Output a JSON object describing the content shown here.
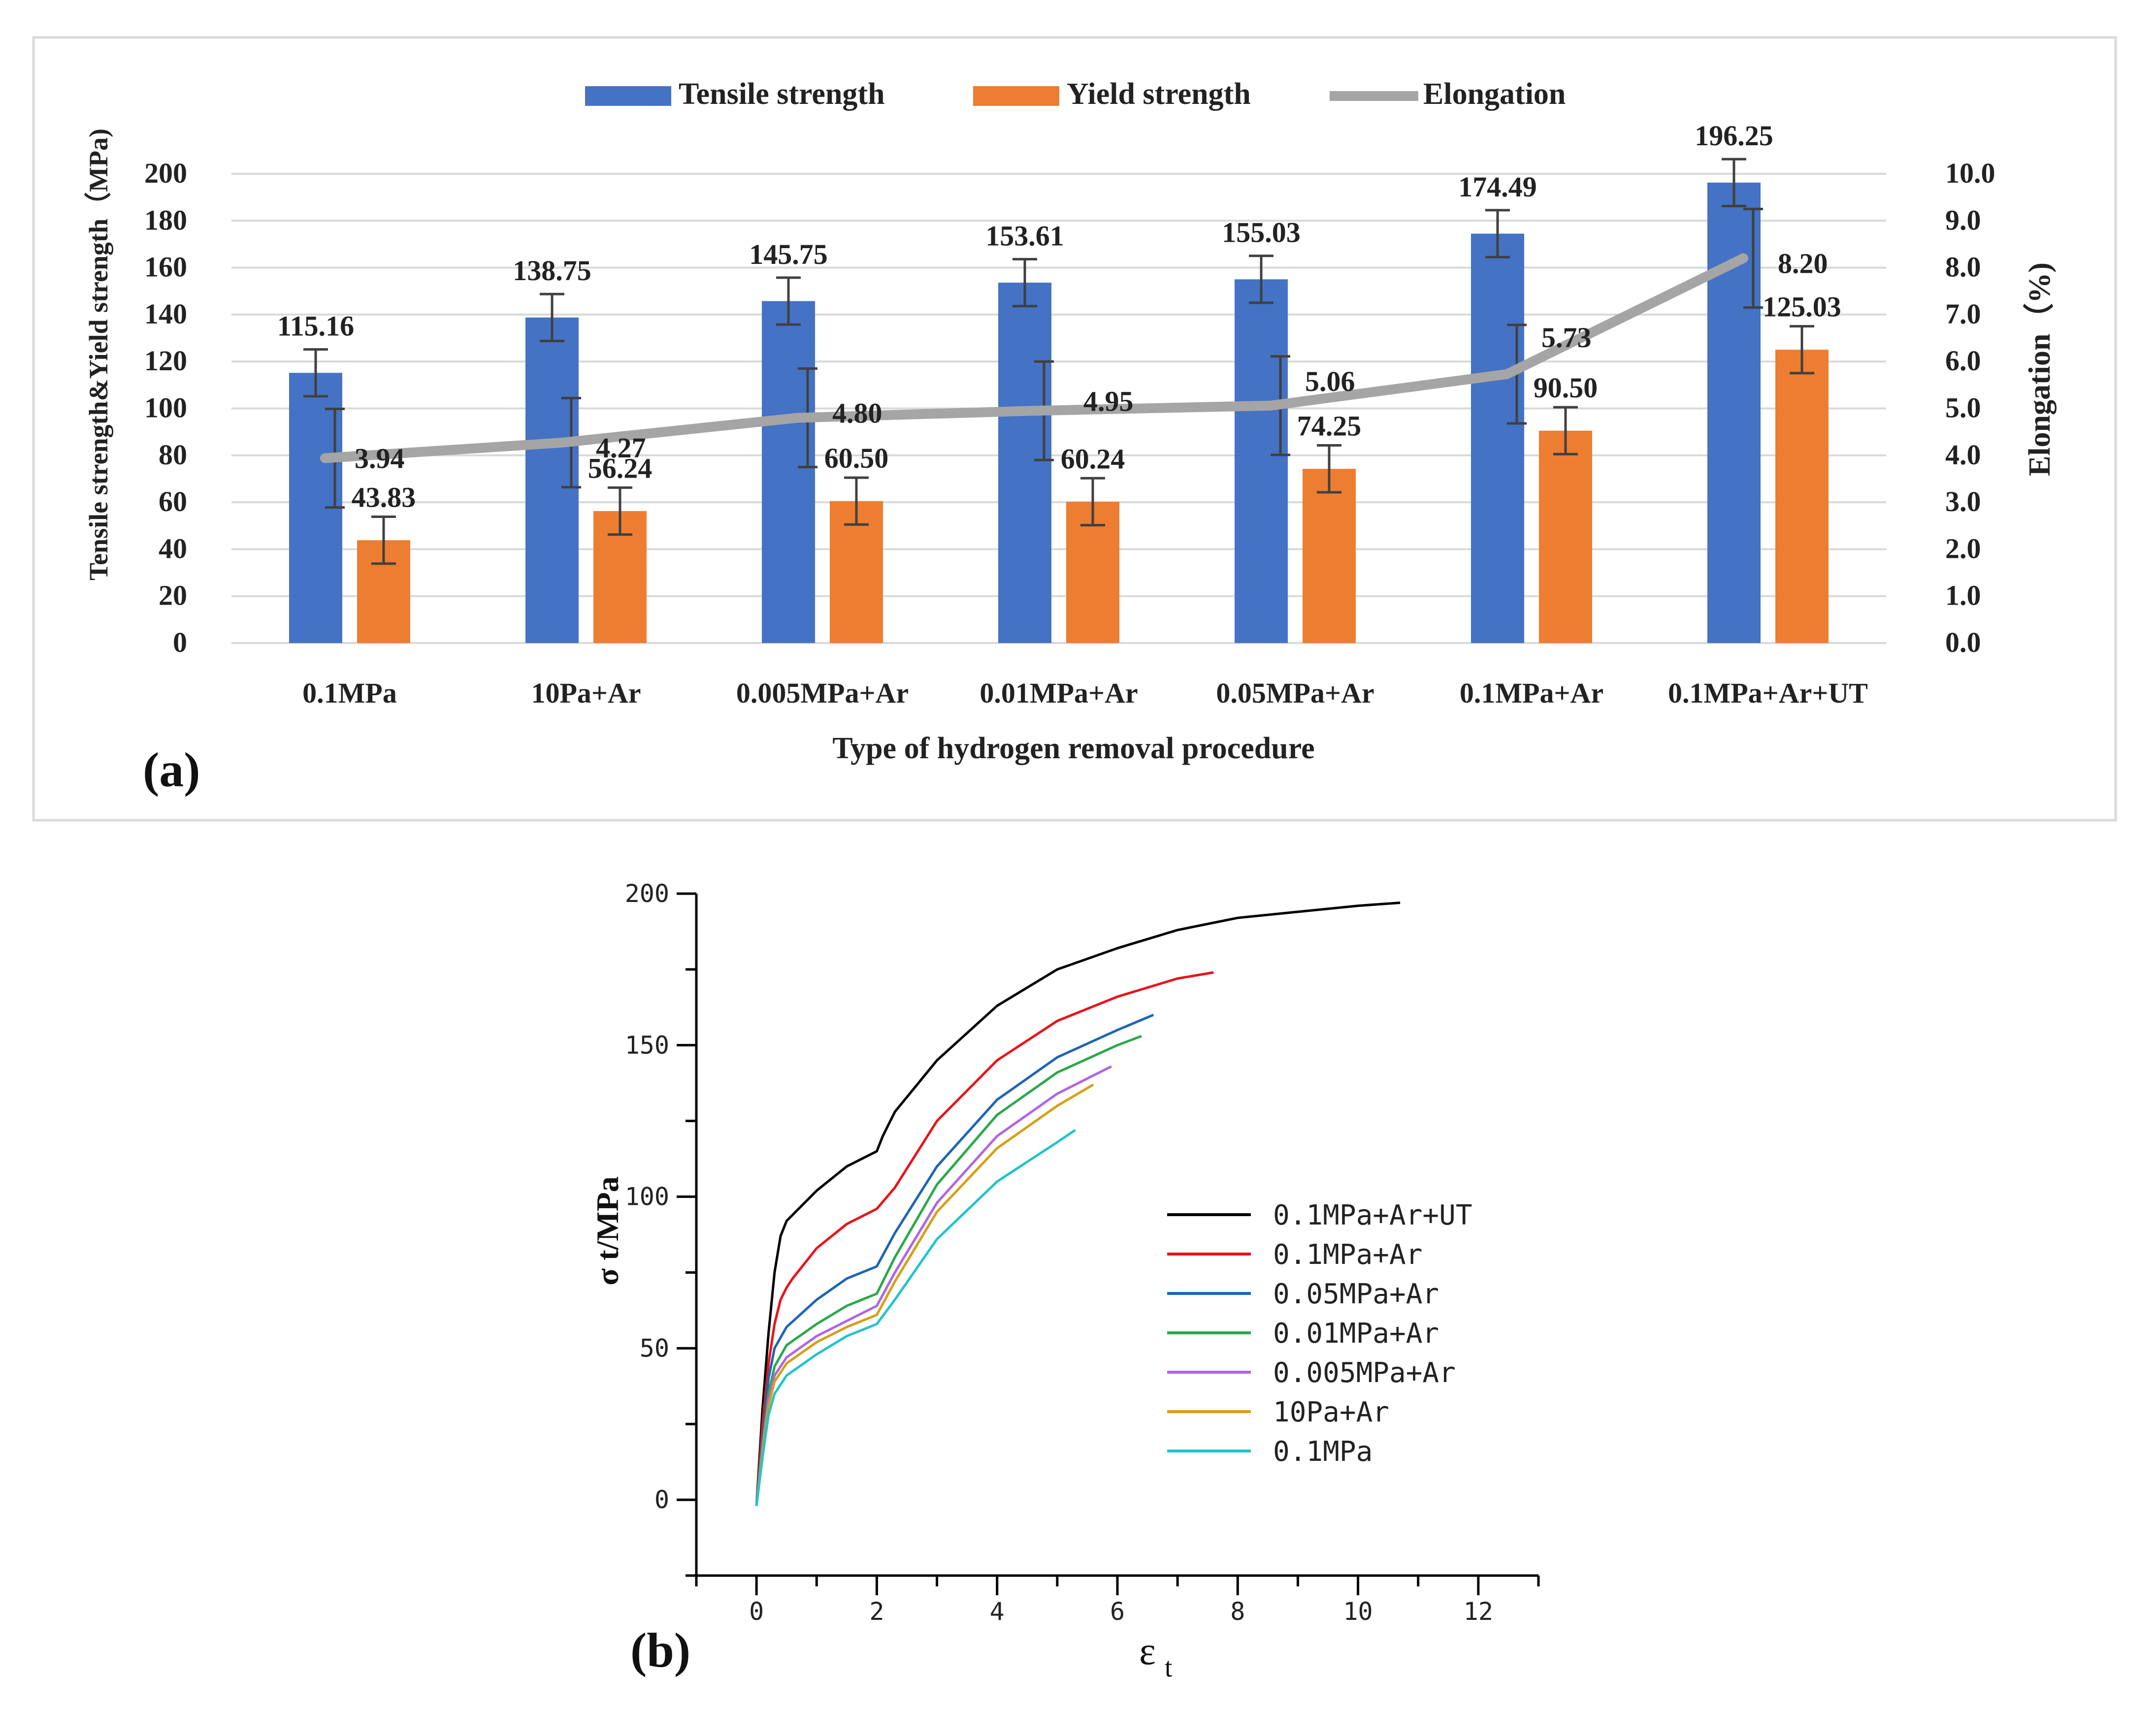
{
  "chart_data": [
    {
      "panel_label": "(a)",
      "type": "bar",
      "title": "",
      "xlabel": "Type of  hydrogen removal procedure",
      "ylabel": "Tensile strength&Yield strength（MPa)",
      "y2label": "Elongation（%)",
      "categories": [
        "0.1MPa",
        "10Pa+Ar",
        "0.005MPa+Ar",
        "0.01MPa+Ar",
        "0.05MPa+Ar",
        "0.1MPa+Ar",
        "0.1MPa+Ar+UT"
      ],
      "ylim": [
        0,
        200
      ],
      "yticks": [
        "0",
        "20",
        "40",
        "60",
        "80",
        "100",
        "120",
        "140",
        "160",
        "180",
        "200"
      ],
      "y2lim": [
        0,
        10
      ],
      "y2ticks": [
        "0.0",
        "1.0",
        "2.0",
        "3.0",
        "4.0",
        "5.0",
        "6.0",
        "7.0",
        "8.0",
        "9.0",
        "10.0"
      ],
      "legend_position": "top",
      "series": [
        {
          "name": "Tensile strength",
          "kind": "bar",
          "color": "#4472C4",
          "values": [
            115.16,
            138.75,
            145.75,
            153.61,
            155.03,
            174.49,
            196.25
          ],
          "labels": [
            "115.16",
            "138.75",
            "145.75",
            "153.61",
            "155.03",
            "174.49",
            "196.25"
          ],
          "error": [
            10,
            10,
            10,
            10,
            10,
            10,
            10
          ]
        },
        {
          "name": "Yield strength",
          "kind": "bar",
          "color": "#ED7D31",
          "values": [
            43.83,
            56.24,
            60.5,
            60.24,
            74.25,
            90.5,
            125.03
          ],
          "labels": [
            "43.83",
            "56.24",
            "60.50",
            "60.24",
            "74.25",
            "90.50",
            "125.03"
          ],
          "error": [
            10,
            10,
            10,
            10,
            10,
            10,
            10
          ]
        },
        {
          "name": "Elongation",
          "kind": "line",
          "axis": "right",
          "color": "#A5A5A5",
          "values": [
            3.94,
            4.27,
            4.8,
            4.95,
            5.06,
            5.73,
            8.2
          ],
          "labels": [
            "3.94",
            "4.27",
            "4.80",
            "4.95",
            "5.06",
            "5.73",
            "8.20"
          ],
          "error": [
            1.05,
            0.95,
            1.05,
            1.05,
            1.05,
            1.05,
            1.05
          ]
        }
      ]
    },
    {
      "panel_label": "(b)",
      "type": "line",
      "title": "",
      "xlabel": "ε",
      "xlabel_sub": "t",
      "ylabel": "σ t/MPa",
      "xlim": [
        -1,
        13
      ],
      "ylim": [
        -25,
        200
      ],
      "xticks": [
        "0",
        "2",
        "4",
        "6",
        "8",
        "10",
        "12"
      ],
      "yticks": [
        "0",
        "50",
        "100",
        "150",
        "200"
      ],
      "legend_position": "right-center",
      "series": [
        {
          "name": "0.1MPa+Ar+UT",
          "color": "#000000",
          "x": [
            0,
            0.1,
            0.2,
            0.3,
            0.4,
            0.5,
            0.6,
            1.0,
            1.5,
            2.0,
            2.1,
            2.3,
            3.0,
            4.0,
            5.0,
            6.0,
            7.0,
            8.0,
            9.0,
            10.0,
            10.7
          ],
          "y": [
            -2,
            30,
            55,
            75,
            87,
            92,
            94,
            102,
            110,
            115,
            120,
            128,
            145,
            163,
            175,
            182,
            188,
            192,
            194,
            196,
            197
          ]
        },
        {
          "name": "0.1MPa+Ar",
          "color": "#E8141B",
          "x": [
            0,
            0.1,
            0.2,
            0.3,
            0.4,
            0.5,
            0.6,
            1.0,
            1.5,
            2.0,
            2.3,
            3.0,
            4.0,
            5.0,
            6.0,
            7.0,
            7.6
          ],
          "y": [
            -2,
            25,
            45,
            58,
            66,
            70,
            73,
            83,
            91,
            96,
            103,
            125,
            145,
            158,
            166,
            172,
            174
          ]
        },
        {
          "name": "0.05MPa+Ar",
          "color": "#1F64B4",
          "x": [
            0,
            0.1,
            0.2,
            0.3,
            0.5,
            1.0,
            1.5,
            2.0,
            2.3,
            3.0,
            4.0,
            5.0,
            6.0,
            6.6
          ],
          "y": [
            -2,
            20,
            40,
            50,
            57,
            66,
            73,
            77,
            88,
            110,
            132,
            146,
            155,
            160
          ]
        },
        {
          "name": "0.01MPa+Ar",
          "color": "#2BA84A",
          "x": [
            0,
            0.1,
            0.2,
            0.3,
            0.5,
            1.0,
            1.5,
            2.0,
            2.3,
            3.0,
            4.0,
            5.0,
            6.0,
            6.4
          ],
          "y": [
            -2,
            18,
            35,
            44,
            51,
            58,
            64,
            68,
            80,
            104,
            127,
            141,
            150,
            153
          ]
        },
        {
          "name": "0.005MPa+Ar",
          "color": "#B066E0",
          "x": [
            0,
            0.1,
            0.2,
            0.3,
            0.5,
            1.0,
            1.5,
            2.0,
            2.3,
            3.0,
            4.0,
            5.0,
            5.9
          ],
          "y": [
            -2,
            17,
            33,
            41,
            47,
            54,
            59,
            64,
            75,
            98,
            120,
            134,
            143
          ]
        },
        {
          "name": "10Pa+Ar",
          "color": "#D4A017",
          "x": [
            0,
            0.1,
            0.2,
            0.3,
            0.5,
            1.0,
            1.5,
            2.0,
            2.3,
            3.0,
            4.0,
            5.0,
            5.6
          ],
          "y": [
            -2,
            16,
            31,
            39,
            45,
            52,
            57,
            61,
            72,
            95,
            116,
            130,
            137
          ]
        },
        {
          "name": "0.1MPa",
          "color": "#22C4CC",
          "x": [
            0,
            0.1,
            0.2,
            0.3,
            0.5,
            1.0,
            1.5,
            2.0,
            2.3,
            3.0,
            4.0,
            5.0,
            5.3
          ],
          "y": [
            -2,
            14,
            28,
            35,
            41,
            48,
            54,
            58,
            66,
            86,
            105,
            118,
            122
          ]
        }
      ]
    }
  ]
}
